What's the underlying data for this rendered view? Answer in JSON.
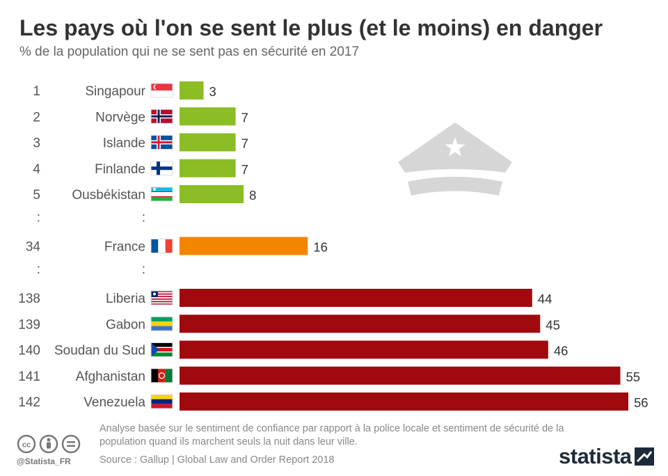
{
  "header": {
    "title": "Les pays où l'on se sent le plus (et le moins) en danger",
    "subtitle": "% de la population qui ne se sent pas en sécurité en 2017"
  },
  "colors": {
    "safe": "#8cbd25",
    "france": "#f28500",
    "danger": "#a00a0e"
  },
  "chart_data": {
    "type": "bar",
    "orientation": "horizontal",
    "xlim": [
      0,
      56
    ],
    "grid": false,
    "legend": "none",
    "rows": [
      {
        "rank": "1",
        "country": "Singapour",
        "value": 3,
        "group": "safe",
        "flag": "sg"
      },
      {
        "rank": "2",
        "country": "Norvège",
        "value": 7,
        "group": "safe",
        "flag": "no"
      },
      {
        "rank": "3",
        "country": "Islande",
        "value": 7,
        "group": "safe",
        "flag": "is"
      },
      {
        "rank": "4",
        "country": "Finlande",
        "value": 7,
        "group": "safe",
        "flag": "fi"
      },
      {
        "rank": "5",
        "country": "Ousbékistan",
        "value": 8,
        "group": "safe",
        "flag": "uz"
      },
      {
        "separator": true,
        "rank": ":",
        "country": ":"
      },
      {
        "rank": "34",
        "country": "France",
        "value": 16,
        "group": "france",
        "flag": "fr"
      },
      {
        "separator": true,
        "rank": ":",
        "country": ":"
      },
      {
        "rank": "138",
        "country": "Liberia",
        "value": 44,
        "group": "danger",
        "flag": "lr"
      },
      {
        "rank": "139",
        "country": "Gabon",
        "value": 45,
        "group": "danger",
        "flag": "ga"
      },
      {
        "rank": "140",
        "country": "Soudan du Sud",
        "value": 46,
        "group": "danger",
        "flag": "ss"
      },
      {
        "rank": "141",
        "country": "Afghanistan",
        "value": 55,
        "group": "danger",
        "flag": "af"
      },
      {
        "rank": "142",
        "country": "Venezuela",
        "value": 56,
        "group": "danger",
        "flag": "ve"
      }
    ]
  },
  "decoration": {
    "illustration": "police-cap-icon"
  },
  "footer": {
    "note": "Analyse basée sur le sentiment de confiance par rapport à la police locale et sentiment de sécurité de la population quand ils marchent seuls la nuit dans leur ville.",
    "source": "Source : Gallup | Global Law and Order Report 2018",
    "handle": "@Statista_FR",
    "brand": "statista",
    "license_icons": [
      "cc-icon",
      "by-icon",
      "nd-icon"
    ]
  }
}
